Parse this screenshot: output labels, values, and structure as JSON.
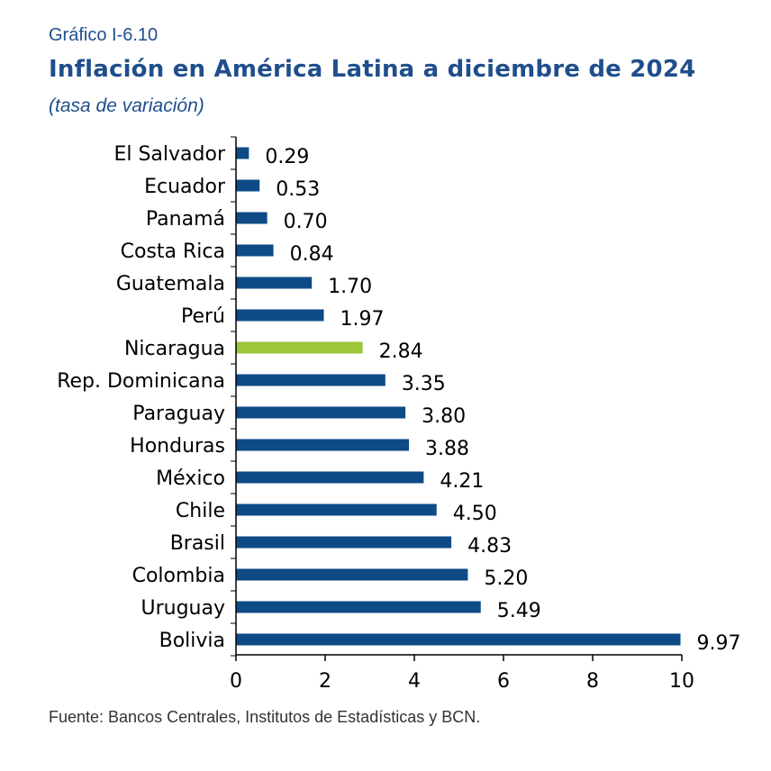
{
  "figure": {
    "label": "Gráfico I-6.10",
    "title": "Inflación en América Latina a diciembre de 2024",
    "subtitle": "(tasa de variación)",
    "source": "Fuente: Bancos Centrales, Institutos de Estadísticas y BCN."
  },
  "colors": {
    "bar": "#0e4a86",
    "highlight": "#9dc63b",
    "axis": "#000000"
  },
  "chart_data": {
    "type": "bar",
    "orientation": "horizontal",
    "categories": [
      "El Salvador",
      "Ecuador",
      "Panamá",
      "Costa Rica",
      "Guatemala",
      "Perú",
      "Nicaragua",
      "Rep. Dominicana",
      "Paraguay",
      "Honduras",
      "México",
      "Chile",
      "Brasil",
      "Colombia",
      "Uruguay",
      "Bolivia"
    ],
    "values": [
      0.29,
      0.53,
      0.7,
      0.84,
      1.7,
      1.97,
      2.84,
      3.35,
      3.8,
      3.88,
      4.21,
      4.5,
      4.83,
      5.2,
      5.49,
      9.97
    ],
    "value_labels": [
      "0.29",
      "0.53",
      "0.70",
      "0.84",
      "1.70",
      "1.97",
      "2.84",
      "3.35",
      "3.80",
      "3.88",
      "4.21",
      "4.50",
      "4.83",
      "5.20",
      "5.49",
      "9.97"
    ],
    "highlight_category": "Nicaragua",
    "xlim": [
      0,
      10
    ],
    "xticks": [
      0,
      2,
      4,
      6,
      8,
      10
    ],
    "xtick_labels": [
      "0",
      "2",
      "4",
      "6",
      "8",
      "10"
    ],
    "grid": false,
    "legend": "none"
  }
}
